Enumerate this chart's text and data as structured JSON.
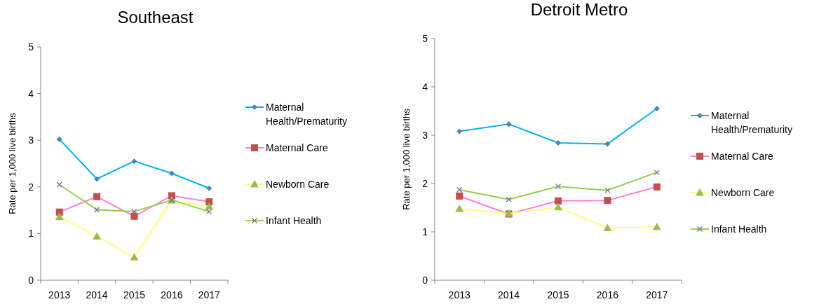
{
  "chart_data": [
    {
      "type": "line",
      "title": "Southeast",
      "ylabel": "Rate per 1,000 live births",
      "categories": [
        "2013",
        "2014",
        "2015",
        "2016",
        "2017"
      ],
      "ylim": [
        0,
        5
      ],
      "yticks": [
        0,
        1,
        2,
        3,
        4,
        5
      ],
      "grid": false,
      "legend": "right",
      "series": [
        {
          "name": "Maternal Health/Prematurity",
          "color": "#00b0f0",
          "marker": "diamond",
          "values": [
            3.02,
            2.17,
            2.55,
            2.29,
            1.97
          ]
        },
        {
          "name": "Maternal Care",
          "color": "#ff80d8",
          "marker": "square",
          "values": [
            1.46,
            1.79,
            1.37,
            1.81,
            1.68
          ]
        },
        {
          "name": "Newborn Care",
          "color": "#ffff80",
          "marker": "triangle",
          "values": [
            1.36,
            0.94,
            0.49,
            1.71,
            1.58
          ]
        },
        {
          "name": "Infant Health",
          "color": "#92d050",
          "marker": "cross",
          "values": [
            2.05,
            1.51,
            1.47,
            1.72,
            1.47
          ]
        }
      ]
    },
    {
      "type": "line",
      "title": "Detroit Metro",
      "ylabel": "Rate per 1,000 live births",
      "categories": [
        "2013",
        "2014",
        "2015",
        "2016",
        "2017"
      ],
      "ylim": [
        0,
        5
      ],
      "yticks": [
        0,
        1,
        2,
        3,
        4,
        5
      ],
      "grid": false,
      "legend": "right",
      "series": [
        {
          "name": "Maternal Health/Prematurity",
          "color": "#00b0f0",
          "marker": "diamond",
          "values": [
            3.08,
            3.23,
            2.84,
            2.82,
            3.55
          ]
        },
        {
          "name": "Maternal Care",
          "color": "#ff80d8",
          "marker": "square",
          "values": [
            1.74,
            1.37,
            1.64,
            1.65,
            1.93
          ]
        },
        {
          "name": "Newborn Care",
          "color": "#ffff80",
          "marker": "triangle",
          "values": [
            1.48,
            1.38,
            1.51,
            1.08,
            1.1
          ]
        },
        {
          "name": "Infant Health",
          "color": "#92d050",
          "marker": "cross",
          "values": [
            1.87,
            1.67,
            1.94,
            1.86,
            2.23
          ]
        }
      ]
    }
  ]
}
